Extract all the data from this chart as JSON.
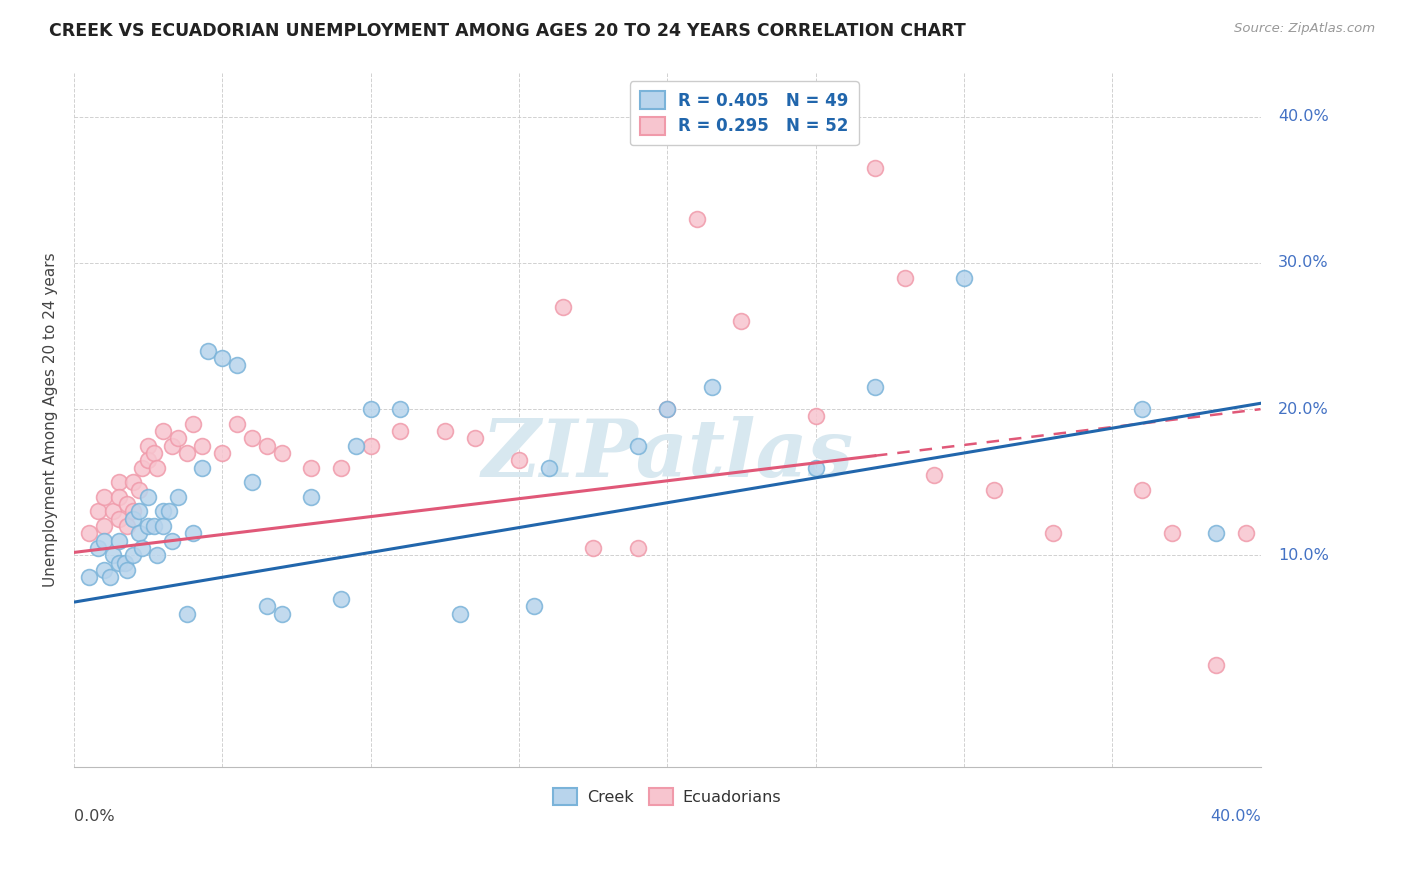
{
  "title": "CREEK VS ECUADORIAN UNEMPLOYMENT AMONG AGES 20 TO 24 YEARS CORRELATION CHART",
  "source": "Source: ZipAtlas.com",
  "ylabel": "Unemployment Among Ages 20 to 24 years",
  "xlim": [
    0.0,
    0.4
  ],
  "ylim": [
    -0.045,
    0.43
  ],
  "yticks": [
    0.1,
    0.2,
    0.3,
    0.4
  ],
  "ytick_labels": [
    "10.0%",
    "20.0%",
    "30.0%",
    "40.0%"
  ],
  "creek_color": "#7ab3d9",
  "creek_fill": "#b8d4ec",
  "ecu_color": "#f09aaa",
  "ecu_fill": "#f7c5cf",
  "line_creek_color": "#2166ac",
  "line_ecu_color": "#e05878",
  "watermark_color": "#d8e8f0",
  "creek_x": [
    0.005,
    0.008,
    0.01,
    0.01,
    0.012,
    0.013,
    0.015,
    0.015,
    0.017,
    0.018,
    0.02,
    0.02,
    0.022,
    0.022,
    0.023,
    0.025,
    0.025,
    0.027,
    0.028,
    0.03,
    0.03,
    0.032,
    0.033,
    0.035,
    0.038,
    0.04,
    0.043,
    0.045,
    0.05,
    0.055,
    0.06,
    0.065,
    0.07,
    0.08,
    0.09,
    0.095,
    0.1,
    0.11,
    0.13,
    0.155,
    0.16,
    0.19,
    0.2,
    0.215,
    0.25,
    0.27,
    0.3,
    0.36,
    0.385
  ],
  "creek_y": [
    0.085,
    0.105,
    0.11,
    0.09,
    0.085,
    0.1,
    0.11,
    0.095,
    0.095,
    0.09,
    0.125,
    0.1,
    0.13,
    0.115,
    0.105,
    0.14,
    0.12,
    0.12,
    0.1,
    0.13,
    0.12,
    0.13,
    0.11,
    0.14,
    0.06,
    0.115,
    0.16,
    0.24,
    0.235,
    0.23,
    0.15,
    0.065,
    0.06,
    0.14,
    0.07,
    0.175,
    0.2,
    0.2,
    0.06,
    0.065,
    0.16,
    0.175,
    0.2,
    0.215,
    0.16,
    0.215,
    0.29,
    0.2,
    0.115
  ],
  "ecu_x": [
    0.005,
    0.008,
    0.01,
    0.01,
    0.013,
    0.015,
    0.015,
    0.015,
    0.018,
    0.018,
    0.02,
    0.02,
    0.022,
    0.023,
    0.025,
    0.025,
    0.027,
    0.028,
    0.03,
    0.033,
    0.035,
    0.038,
    0.04,
    0.043,
    0.05,
    0.055,
    0.06,
    0.065,
    0.07,
    0.08,
    0.09,
    0.1,
    0.11,
    0.125,
    0.135,
    0.15,
    0.165,
    0.175,
    0.19,
    0.2,
    0.21,
    0.225,
    0.25,
    0.27,
    0.28,
    0.29,
    0.31,
    0.33,
    0.36,
    0.37,
    0.385,
    0.395
  ],
  "ecu_y": [
    0.115,
    0.13,
    0.14,
    0.12,
    0.13,
    0.15,
    0.14,
    0.125,
    0.135,
    0.12,
    0.15,
    0.13,
    0.145,
    0.16,
    0.175,
    0.165,
    0.17,
    0.16,
    0.185,
    0.175,
    0.18,
    0.17,
    0.19,
    0.175,
    0.17,
    0.19,
    0.18,
    0.175,
    0.17,
    0.16,
    0.16,
    0.175,
    0.185,
    0.185,
    0.18,
    0.165,
    0.27,
    0.105,
    0.105,
    0.2,
    0.33,
    0.26,
    0.195,
    0.365,
    0.29,
    0.155,
    0.145,
    0.115,
    0.145,
    0.115,
    0.025,
    0.115
  ]
}
